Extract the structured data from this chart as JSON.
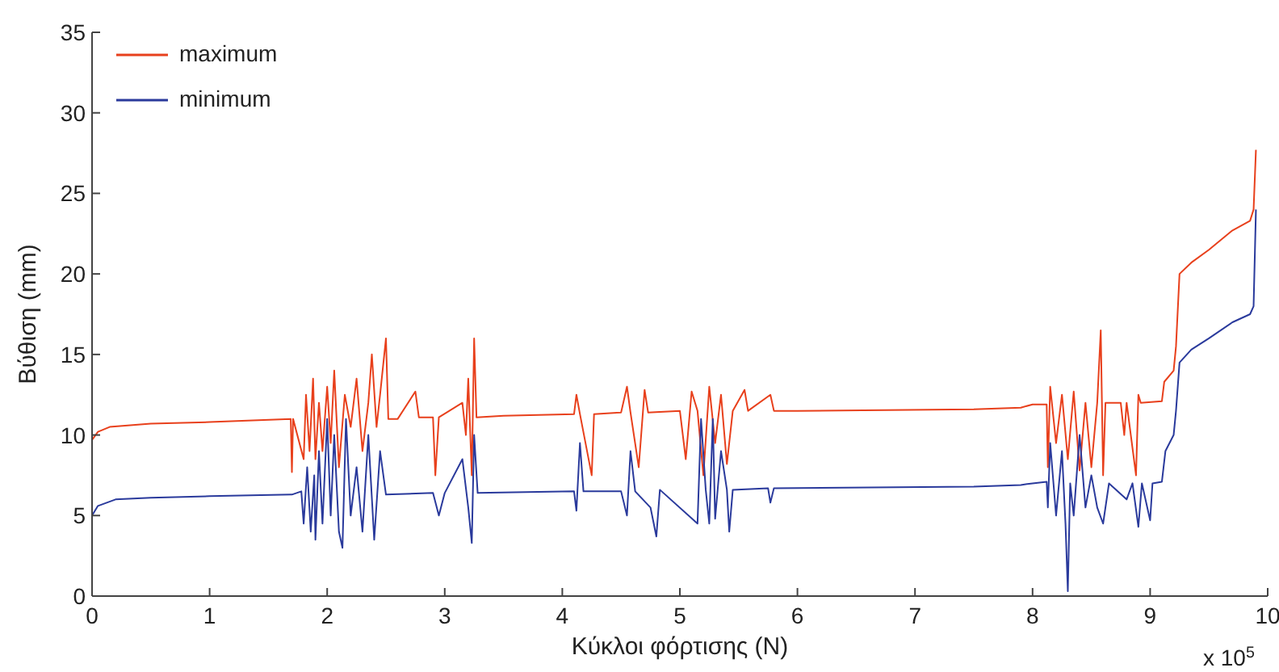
{
  "chart_data": {
    "type": "line",
    "xlabel": "Κύκλοι φόρτισης (N)",
    "ylabel": "Βύθιση (mm)",
    "annotations": [
      "x 10$^{5}$"
    ],
    "xlim": [
      0,
      10
    ],
    "xticks": [
      0,
      1,
      2,
      3,
      4,
      5,
      6,
      7,
      8,
      9,
      10
    ],
    "ylim": [
      0,
      35
    ],
    "yticks": [
      0,
      5,
      10,
      15,
      20,
      25,
      30,
      35
    ],
    "grid": false,
    "legend": "top left",
    "marker": "none",
    "line_style": "solid",
    "series": [
      {
        "name": "maximum",
        "color": "#e8401c",
        "x": [
          0,
          0.05,
          0.15,
          0.5,
          1.0,
          1.69,
          1.7,
          1.71,
          1.8,
          1.82,
          1.85,
          1.88,
          1.9,
          1.93,
          1.96,
          2.0,
          2.03,
          2.06,
          2.1,
          2.15,
          2.2,
          2.25,
          2.3,
          2.35,
          2.38,
          2.42,
          2.45,
          2.5,
          2.52,
          2.6,
          2.75,
          2.78,
          2.9,
          2.92,
          2.95,
          3.15,
          3.18,
          3.2,
          3.23,
          3.25,
          3.27,
          3.5,
          4.1,
          4.12,
          4.15,
          4.25,
          4.27,
          4.5,
          4.55,
          4.58,
          4.65,
          4.7,
          4.73,
          5.0,
          5.05,
          5.1,
          5.15,
          5.2,
          5.25,
          5.3,
          5.35,
          5.4,
          5.45,
          5.55,
          5.58,
          5.77,
          5.8,
          6.0,
          7.5,
          7.9,
          8.0,
          8.12,
          8.13,
          8.15,
          8.2,
          8.25,
          8.3,
          8.35,
          8.4,
          8.45,
          8.5,
          8.55,
          8.58,
          8.6,
          8.62,
          8.75,
          8.78,
          8.8,
          8.88,
          8.9,
          8.92,
          9.1,
          9.12,
          9.2,
          9.22,
          9.25,
          9.35,
          9.5,
          9.7,
          9.85,
          9.88,
          9.9
        ],
        "values": [
          9.7,
          10.2,
          10.5,
          10.7,
          10.8,
          11.0,
          7.7,
          11.0,
          8.5,
          12.5,
          9.0,
          13.5,
          8.5,
          12.0,
          9.0,
          13.0,
          9.5,
          14.0,
          8.0,
          12.5,
          10.5,
          13.5,
          9.0,
          12.0,
          15.0,
          10.5,
          12.5,
          16.0,
          11.0,
          11.0,
          12.7,
          11.1,
          11.1,
          7.5,
          11.1,
          12.0,
          10.0,
          13.5,
          7.5,
          16.0,
          11.1,
          11.2,
          11.3,
          12.5,
          11.3,
          7.5,
          11.3,
          11.4,
          13.0,
          11.4,
          8.0,
          12.8,
          11.4,
          11.5,
          8.5,
          12.7,
          11.5,
          7.5,
          13.0,
          9.5,
          12.5,
          8.2,
          11.5,
          12.8,
          11.5,
          12.5,
          11.5,
          11.5,
          11.6,
          11.7,
          11.9,
          11.9,
          8.0,
          13.0,
          9.5,
          12.5,
          8.5,
          12.7,
          7.8,
          12.0,
          8.0,
          12.0,
          16.5,
          7.5,
          12.0,
          12.0,
          10.0,
          12.0,
          7.5,
          12.5,
          12.0,
          12.1,
          13.3,
          14.0,
          15.5,
          20.0,
          20.7,
          21.5,
          22.7,
          23.3,
          24.0,
          27.7
        ]
      },
      {
        "name": "minimum",
        "color": "#2a3a9c",
        "x": [
          0,
          0.05,
          0.2,
          0.5,
          1.0,
          1.7,
          1.78,
          1.8,
          1.83,
          1.86,
          1.89,
          1.9,
          1.93,
          1.96,
          2.0,
          2.03,
          2.06,
          2.1,
          2.13,
          2.16,
          2.2,
          2.25,
          2.3,
          2.35,
          2.4,
          2.45,
          2.5,
          2.9,
          2.95,
          3.0,
          3.15,
          3.2,
          3.23,
          3.25,
          3.28,
          4.1,
          4.12,
          4.15,
          4.18,
          4.5,
          4.55,
          4.58,
          4.62,
          4.75,
          4.8,
          4.83,
          5.15,
          5.18,
          5.22,
          5.25,
          5.28,
          5.3,
          5.35,
          5.4,
          5.42,
          5.45,
          5.75,
          5.77,
          5.8,
          7.5,
          7.9,
          8.0,
          8.12,
          8.13,
          8.15,
          8.2,
          8.25,
          8.28,
          8.3,
          8.32,
          8.35,
          8.4,
          8.45,
          8.5,
          8.55,
          8.6,
          8.65,
          8.8,
          8.85,
          8.9,
          8.93,
          9.0,
          9.02,
          9.1,
          9.13,
          9.2,
          9.22,
          9.25,
          9.35,
          9.5,
          9.7,
          9.85,
          9.88,
          9.9
        ],
        "values": [
          5.0,
          5.6,
          6.0,
          6.1,
          6.2,
          6.3,
          6.5,
          4.5,
          8.0,
          4.0,
          7.5,
          3.5,
          9.0,
          4.5,
          11.0,
          5.0,
          10.0,
          4.0,
          3.0,
          11.0,
          5.0,
          8.0,
          4.0,
          10.0,
          3.5,
          9.0,
          6.3,
          6.4,
          5.0,
          6.4,
          8.5,
          5.5,
          3.3,
          10.0,
          6.4,
          6.5,
          5.3,
          9.5,
          6.5,
          6.5,
          5.0,
          9.0,
          6.5,
          5.5,
          3.7,
          6.6,
          4.5,
          11.0,
          6.6,
          4.5,
          11.0,
          4.8,
          9.0,
          6.6,
          4.0,
          6.6,
          6.7,
          5.8,
          6.7,
          6.8,
          6.9,
          7.0,
          7.1,
          5.5,
          9.5,
          5.0,
          9.0,
          4.5,
          0.3,
          7.0,
          5.0,
          10.0,
          5.5,
          7.5,
          5.5,
          4.5,
          7.0,
          6.0,
          7.0,
          4.3,
          7.0,
          4.7,
          7.0,
          7.1,
          9.0,
          10.0,
          11.5,
          14.5,
          15.3,
          16.0,
          17.0,
          17.5,
          18.0,
          24.0
        ]
      }
    ]
  }
}
